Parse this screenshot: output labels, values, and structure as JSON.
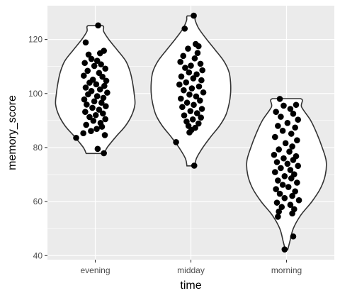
{
  "chart_data": {
    "type": "violin",
    "title": "",
    "xlabel": "time",
    "ylabel": "memory_score",
    "categories": [
      "evening",
      "midday",
      "morning"
    ],
    "ylim": [
      38.5,
      132.5
    ],
    "yticks": [
      40,
      60,
      80,
      100,
      120
    ],
    "grid": true,
    "legend": "none",
    "colors": {
      "panel": "#ebebeb",
      "grid_major": "#ffffff",
      "violin_stroke": "#333333",
      "violin_fill": "#ffffff",
      "point": "#000000",
      "tick_text": "#4d4d4d",
      "axis_title": "#000000"
    },
    "violins": [
      {
        "category": "evening",
        "profile": [
          [
            77.8,
            0.23
          ],
          [
            80,
            0.3
          ],
          [
            84,
            0.52
          ],
          [
            88,
            0.76
          ],
          [
            92,
            0.92
          ],
          [
            96,
            1.0
          ],
          [
            100,
            0.98
          ],
          [
            104,
            0.94
          ],
          [
            108,
            0.88
          ],
          [
            112,
            0.77
          ],
          [
            116,
            0.56
          ],
          [
            120,
            0.34
          ],
          [
            123,
            0.21
          ],
          [
            125.1,
            0.18
          ]
        ],
        "points": [
          [
            0.06,
            125.2
          ],
          [
            -0.2,
            118.9
          ],
          [
            -0.14,
            114.4
          ],
          [
            0.18,
            115.8
          ],
          [
            0.1,
            114.9
          ],
          [
            -0.08,
            112.8
          ],
          [
            0.04,
            112.1
          ],
          [
            -0.22,
            111.3
          ],
          [
            0.12,
            110.8
          ],
          [
            -0.02,
            110.2
          ],
          [
            0.21,
            109.2
          ],
          [
            -0.16,
            108.4
          ],
          [
            0.08,
            107.6
          ],
          [
            -0.24,
            106.6
          ],
          [
            0.15,
            106.2
          ],
          [
            -0.05,
            105.1
          ],
          [
            0.23,
            104.7
          ],
          [
            -0.12,
            104.0
          ],
          [
            0.02,
            103.4
          ],
          [
            0.19,
            102.8
          ],
          [
            -0.2,
            102.2
          ],
          [
            0.1,
            101.5
          ],
          [
            -0.08,
            100.9
          ],
          [
            0.25,
            100.3
          ],
          [
            -0.15,
            99.7
          ],
          [
            0.04,
            99.0
          ],
          [
            0.17,
            98.4
          ],
          [
            -0.23,
            97.8
          ],
          [
            -0.02,
            97.1
          ],
          [
            0.13,
            96.6
          ],
          [
            -0.18,
            95.9
          ],
          [
            0.22,
            95.3
          ],
          [
            -0.06,
            94.7
          ],
          [
            0.08,
            94.0
          ],
          [
            -0.21,
            93.2
          ],
          [
            0.16,
            92.6
          ],
          [
            0.01,
            92.0
          ],
          [
            -0.12,
            91.3
          ],
          [
            0.21,
            90.5
          ],
          [
            -0.04,
            89.9
          ],
          [
            0.11,
            89.1
          ],
          [
            -0.19,
            88.4
          ],
          [
            0.14,
            87.7
          ],
          [
            0.03,
            86.9
          ],
          [
            -0.09,
            86.1
          ],
          [
            -0.25,
            85.3
          ],
          [
            0.2,
            84.6
          ],
          [
            -0.4,
            83.6
          ],
          [
            0.05,
            79.5
          ],
          [
            0.18,
            77.9
          ]
        ]
      },
      {
        "category": "midday",
        "profile": [
          [
            73.2,
            0.1
          ],
          [
            76,
            0.14
          ],
          [
            80,
            0.3
          ],
          [
            84,
            0.5
          ],
          [
            88,
            0.72
          ],
          [
            92,
            0.88
          ],
          [
            96,
            0.96
          ],
          [
            100,
            1.0
          ],
          [
            104,
            1.0
          ],
          [
            108,
            0.96
          ],
          [
            112,
            0.83
          ],
          [
            116,
            0.62
          ],
          [
            120,
            0.4
          ],
          [
            124,
            0.2
          ],
          [
            127,
            0.11
          ],
          [
            128.7,
            0.09
          ]
        ],
        "points": [
          [
            0.06,
            128.8
          ],
          [
            -0.13,
            124.0
          ],
          [
            0.1,
            118.3
          ],
          [
            0.16,
            117.5
          ],
          [
            -0.06,
            116.6
          ],
          [
            0.14,
            115.0
          ],
          [
            -0.16,
            113.9
          ],
          [
            0.08,
            113.0
          ],
          [
            -0.22,
            111.7
          ],
          [
            0.2,
            111.0
          ],
          [
            0.0,
            110.3
          ],
          [
            -0.12,
            109.5
          ],
          [
            0.24,
            108.6
          ],
          [
            -0.04,
            107.8
          ],
          [
            0.12,
            107.1
          ],
          [
            -0.2,
            106.3
          ],
          [
            0.05,
            105.6
          ],
          [
            0.22,
            104.9
          ],
          [
            -0.1,
            104.1
          ],
          [
            -0.24,
            103.3
          ],
          [
            0.17,
            102.6
          ],
          [
            0.02,
            101.9
          ],
          [
            -0.15,
            101.2
          ],
          [
            0.26,
            100.4
          ],
          [
            -0.03,
            99.6
          ],
          [
            0.11,
            98.9
          ],
          [
            -0.21,
            98.1
          ],
          [
            0.19,
            97.4
          ],
          [
            -0.08,
            96.6
          ],
          [
            0.06,
            95.8
          ],
          [
            -0.18,
            95.0
          ],
          [
            0.23,
            94.3
          ],
          [
            -0.01,
            93.5
          ],
          [
            0.13,
            92.7
          ],
          [
            -0.14,
            91.9
          ],
          [
            0.21,
            91.1
          ],
          [
            0.04,
            90.4
          ],
          [
            -0.09,
            89.6
          ],
          [
            0.16,
            88.9
          ],
          [
            -0.05,
            88.0
          ],
          [
            0.09,
            87.3
          ],
          [
            0.01,
            86.5
          ],
          [
            -0.03,
            85.6
          ],
          [
            -0.31,
            82.0
          ],
          [
            0.07,
            73.3
          ]
        ]
      },
      {
        "category": "morning",
        "profile": [
          [
            42.2,
            0.03
          ],
          [
            45,
            0.08
          ],
          [
            50,
            0.17
          ],
          [
            55,
            0.36
          ],
          [
            60,
            0.64
          ],
          [
            65,
            0.86
          ],
          [
            70,
            0.98
          ],
          [
            75,
            1.0
          ],
          [
            80,
            0.9
          ],
          [
            85,
            0.77
          ],
          [
            90,
            0.61
          ],
          [
            95,
            0.38
          ],
          [
            98.1,
            0.35
          ]
        ],
        "points": [
          [
            -0.14,
            98.0
          ],
          [
            0.2,
            95.8
          ],
          [
            -0.06,
            95.5
          ],
          [
            0.08,
            94.3
          ],
          [
            -0.22,
            93.2
          ],
          [
            0.14,
            92.5
          ],
          [
            -0.12,
            91.4
          ],
          [
            0.24,
            90.3
          ],
          [
            0.02,
            89.1
          ],
          [
            -0.18,
            88.0
          ],
          [
            0.18,
            87.4
          ],
          [
            -0.08,
            86.2
          ],
          [
            0.1,
            85.1
          ],
          [
            -0.24,
            83.9
          ],
          [
            0.22,
            82.7
          ],
          [
            -0.02,
            81.6
          ],
          [
            0.12,
            80.4
          ],
          [
            -0.16,
            79.3
          ],
          [
            0.06,
            78.5
          ],
          [
            -0.26,
            77.3
          ],
          [
            0.2,
            76.8
          ],
          [
            -0.06,
            76.0
          ],
          [
            0.14,
            75.4
          ],
          [
            -0.2,
            74.6
          ],
          [
            0.02,
            74.0
          ],
          [
            0.24,
            73.2
          ],
          [
            -0.12,
            72.4
          ],
          [
            0.08,
            71.7
          ],
          [
            -0.24,
            70.9
          ],
          [
            0.16,
            70.1
          ],
          [
            -0.04,
            69.4
          ],
          [
            0.1,
            68.6
          ],
          [
            -0.18,
            67.8
          ],
          [
            0.22,
            67.0
          ],
          [
            -0.08,
            66.2
          ],
          [
            0.04,
            65.4
          ],
          [
            -0.22,
            64.6
          ],
          [
            0.18,
            63.8
          ],
          [
            -0.14,
            62.9
          ],
          [
            0.12,
            62.1
          ],
          [
            -0.04,
            61.3
          ],
          [
            0.26,
            60.5
          ],
          [
            -0.2,
            59.6
          ],
          [
            0.08,
            58.8
          ],
          [
            -0.1,
            58.0
          ],
          [
            0.16,
            57.2
          ],
          [
            -0.16,
            56.3
          ],
          [
            0.12,
            55.6
          ],
          [
            -0.18,
            54.4
          ],
          [
            0.14,
            47.1
          ],
          [
            -0.04,
            42.3
          ]
        ]
      }
    ]
  }
}
